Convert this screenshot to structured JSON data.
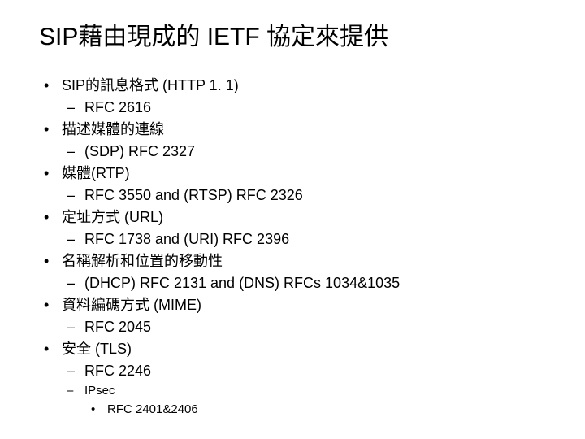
{
  "slide": {
    "title": "SIP藉由現成的 IETF 協定來提供",
    "points": [
      {
        "label": "SIP的訊息格式 (HTTP 1. 1)",
        "subs": [
          {
            "label": "RFC 2616"
          }
        ]
      },
      {
        "label": "描述媒體的連線",
        "subs": [
          {
            "label": "(SDP) RFC 2327"
          }
        ]
      },
      {
        "label": "媒體(RTP)",
        "subs": [
          {
            "label": "RFC 3550 and (RTSP) RFC 2326"
          }
        ]
      },
      {
        "label": "定址方式 (URL)",
        "subs": [
          {
            "label": "RFC 1738 and (URI) RFC 2396"
          }
        ]
      },
      {
        "label": "名稱解析和位置的移動性",
        "subs": [
          {
            "label": "(DHCP) RFC 2131 and (DNS) RFCs 1034&1035"
          }
        ]
      },
      {
        "label": "資料編碼方式 (MIME)",
        "subs": [
          {
            "label": "RFC 2045"
          }
        ]
      },
      {
        "label": "安全 (TLS)",
        "subs": [
          {
            "label": "RFC 2246"
          },
          {
            "label": "IPsec",
            "subs": [
              {
                "label": "RFC 2401&2406"
              }
            ]
          }
        ]
      }
    ]
  },
  "style": {
    "background_color": "#ffffff",
    "text_color": "#000000",
    "title_fontsize": 30,
    "body_fontsize": 18,
    "sub_fontsize": 15
  }
}
